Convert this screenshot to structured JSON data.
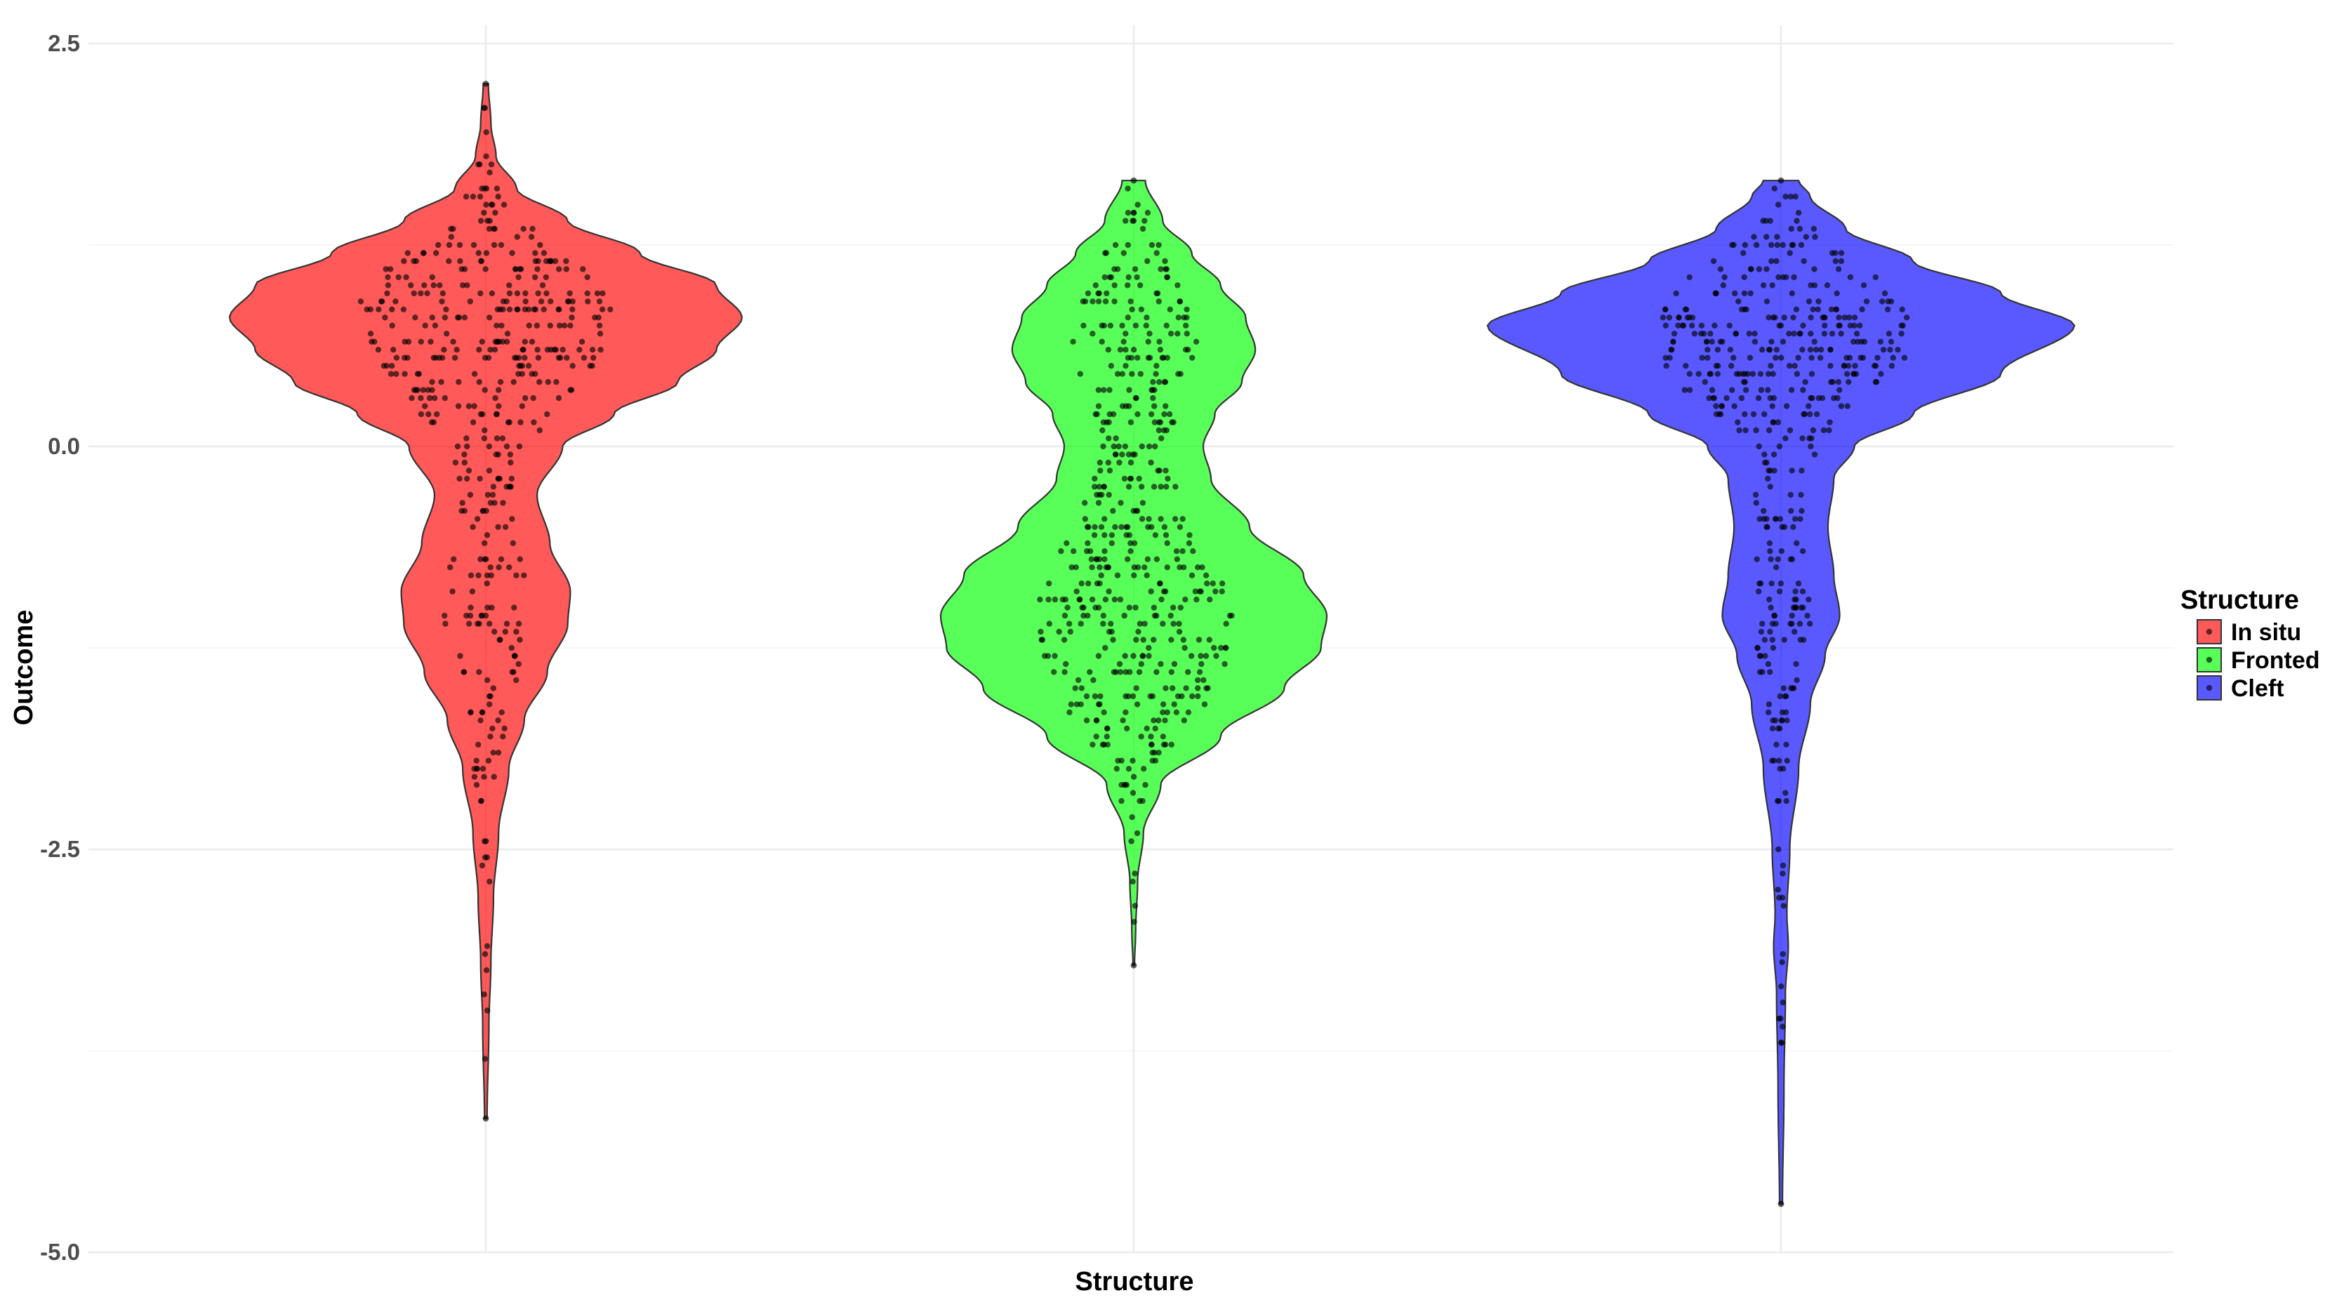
{
  "chart_data": {
    "type": "violin",
    "title": "",
    "xlabel": "Structure",
    "ylabel": "Outcome",
    "ylim": [
      -5.0,
      2.5
    ],
    "yticks": [
      2.5,
      0.0,
      -2.5,
      -5.0
    ],
    "ytick_labels": [
      "2.5",
      "0.0",
      "-2.5",
      "-5.0"
    ],
    "x_tick_labels_shown": false,
    "grid": true,
    "legend": {
      "title": "Structure",
      "placement": "right",
      "entries": [
        "In situ",
        "Fronted",
        "Cleft"
      ]
    },
    "categories": [
      "In situ",
      "Fronted",
      "Cleft"
    ],
    "colors": {
      "In situ": "#ff0000",
      "Fronted": "#00ff00",
      "Cleft": "#0000ff"
    },
    "series": [
      {
        "name": "In situ",
        "range": [
          -4.17,
          2.25
        ],
        "density_profile": [
          [
            -4.17,
            0.005
          ],
          [
            -3.6,
            0.012
          ],
          [
            -3.2,
            0.02
          ],
          [
            -2.8,
            0.03
          ],
          [
            -2.4,
            0.05
          ],
          [
            -2.0,
            0.09
          ],
          [
            -1.7,
            0.15
          ],
          [
            -1.4,
            0.24
          ],
          [
            -1.1,
            0.32
          ],
          [
            -0.9,
            0.33
          ],
          [
            -0.6,
            0.25
          ],
          [
            -0.3,
            0.2
          ],
          [
            0.0,
            0.3
          ],
          [
            0.2,
            0.5
          ],
          [
            0.4,
            0.75
          ],
          [
            0.6,
            0.9
          ],
          [
            0.8,
            1.0
          ],
          [
            1.0,
            0.9
          ],
          [
            1.2,
            0.6
          ],
          [
            1.4,
            0.32
          ],
          [
            1.6,
            0.12
          ],
          [
            1.8,
            0.04
          ],
          [
            2.0,
            0.02
          ],
          [
            2.25,
            0.01
          ]
        ],
        "mode": 0.78,
        "n_points": 450
      },
      {
        "name": "Fronted",
        "range": [
          -3.22,
          1.65
        ],
        "density_profile": [
          [
            -3.22,
            0.004
          ],
          [
            -3.0,
            0.01
          ],
          [
            -2.7,
            0.02
          ],
          [
            -2.4,
            0.05
          ],
          [
            -2.1,
            0.14
          ],
          [
            -1.8,
            0.45
          ],
          [
            -1.5,
            0.78
          ],
          [
            -1.25,
            0.97
          ],
          [
            -1.05,
            1.0
          ],
          [
            -0.8,
            0.88
          ],
          [
            -0.5,
            0.6
          ],
          [
            -0.2,
            0.4
          ],
          [
            0.0,
            0.36
          ],
          [
            0.2,
            0.42
          ],
          [
            0.4,
            0.56
          ],
          [
            0.6,
            0.63
          ],
          [
            0.8,
            0.58
          ],
          [
            1.0,
            0.45
          ],
          [
            1.2,
            0.3
          ],
          [
            1.4,
            0.15
          ],
          [
            1.65,
            0.06
          ]
        ],
        "mode": -1.1,
        "n_points": 500
      },
      {
        "name": "Cleft",
        "range": [
          -4.7,
          1.65
        ],
        "density_profile": [
          [
            -4.7,
            0.005
          ],
          [
            -4.0,
            0.01
          ],
          [
            -3.4,
            0.015
          ],
          [
            -3.1,
            0.025
          ],
          [
            -2.9,
            0.02
          ],
          [
            -2.5,
            0.03
          ],
          [
            -2.0,
            0.06
          ],
          [
            -1.6,
            0.1
          ],
          [
            -1.3,
            0.15
          ],
          [
            -1.05,
            0.2
          ],
          [
            -0.8,
            0.18
          ],
          [
            -0.5,
            0.16
          ],
          [
            -0.2,
            0.18
          ],
          [
            0.0,
            0.25
          ],
          [
            0.2,
            0.45
          ],
          [
            0.45,
            0.75
          ],
          [
            0.75,
            1.0
          ],
          [
            0.95,
            0.75
          ],
          [
            1.15,
            0.45
          ],
          [
            1.35,
            0.22
          ],
          [
            1.55,
            0.1
          ],
          [
            1.65,
            0.06
          ]
        ],
        "mode": 0.77,
        "n_points": 460
      }
    ]
  }
}
